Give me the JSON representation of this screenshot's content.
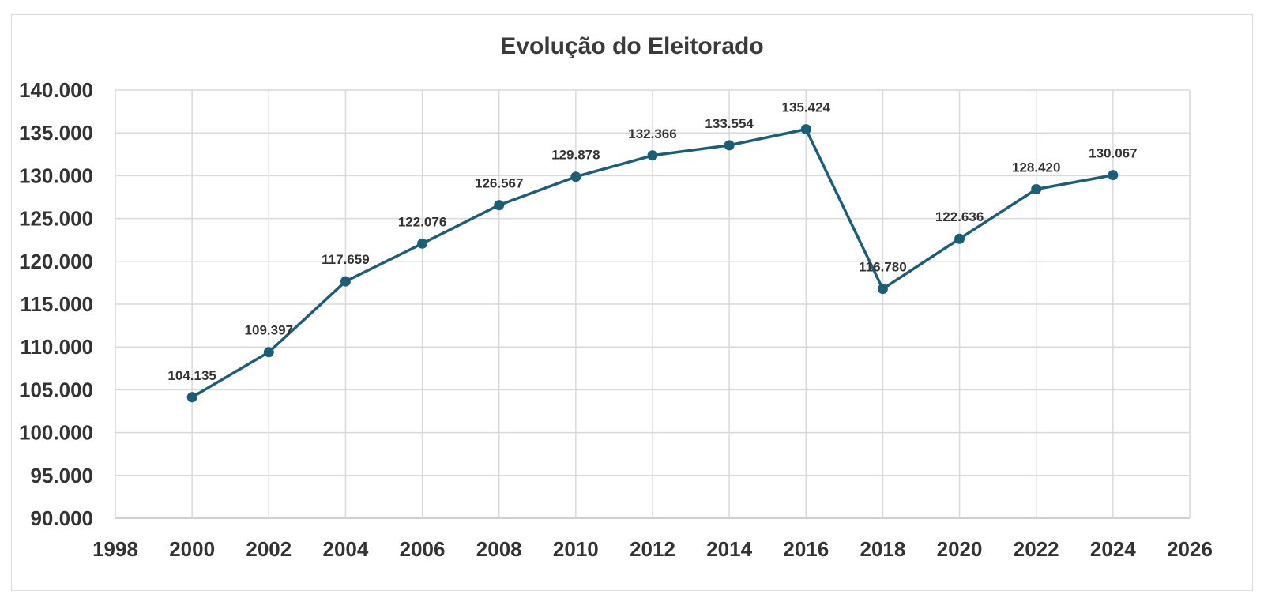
{
  "chart_data": {
    "type": "line",
    "title": "Evolução do Eleitorado",
    "xlabel": "",
    "ylabel": "",
    "xlim": [
      1998,
      2026
    ],
    "ylim": [
      90000,
      140000
    ],
    "x_ticks": [
      "1998",
      "2000",
      "2002",
      "2004",
      "2006",
      "2008",
      "2010",
      "2012",
      "2014",
      "2016",
      "2018",
      "2020",
      "2022",
      "2024",
      "2026"
    ],
    "y_ticks": [
      "90.000",
      "95.000",
      "100.000",
      "105.000",
      "110.000",
      "115.000",
      "120.000",
      "125.000",
      "130.000",
      "135.000",
      "140.000"
    ],
    "grid": true,
    "legend": "none",
    "color": "#1b5e7a",
    "series": [
      {
        "x": [
          2000,
          2002,
          2004,
          2006,
          2008,
          2010,
          2012,
          2014,
          2016,
          2018,
          2020,
          2022,
          2024
        ],
        "values": [
          104135,
          109397,
          117659,
          122076,
          126567,
          129878,
          132366,
          133554,
          135424,
          116780,
          122636,
          128420,
          130067
        ],
        "labels": [
          "104.135",
          "109.397",
          "117.659",
          "122.076",
          "126.567",
          "129.878",
          "132.366",
          "133.554",
          "135.424",
          "116.780",
          "122.636",
          "128.420",
          "130.067"
        ]
      }
    ]
  }
}
